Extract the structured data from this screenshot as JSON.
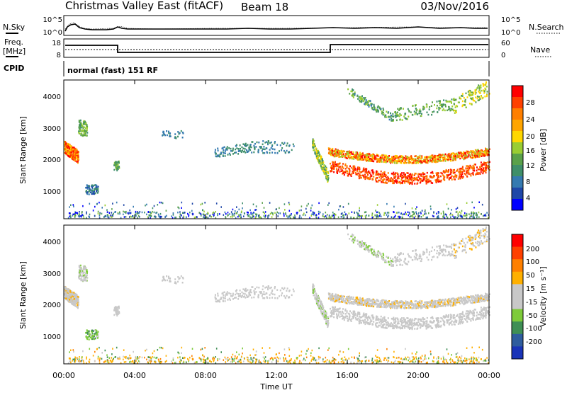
{
  "header": {
    "title": "Christmas Valley East (fitACF)",
    "beam": "Beam 18",
    "date": "03/Nov/2016"
  },
  "top_panels": {
    "nsky_label": "N.Sky",
    "nsky_ticks": [
      "10^5",
      "10^0"
    ],
    "nsearch_label": "N.Search",
    "nsearch_ticks": [
      "10^5",
      "10^0"
    ],
    "freq_label": "Freq.",
    "freq_unit": "[MHz]",
    "freq_ticks": [
      "18",
      "8"
    ],
    "nave_label": "Nave",
    "nave_ticks": [
      "60",
      "0"
    ],
    "cpid_label": "CPID",
    "cpid_text": "normal (fast) 151 RF"
  },
  "chart_data": [
    {
      "type": "heatmap",
      "name": "power",
      "ylabel": "Slant Range [km]",
      "ylim": [
        200,
        4600
      ],
      "y_ticks": [
        "4000",
        "3000",
        "2000",
        "1000"
      ],
      "colorbar_label": "Power [dB]",
      "colorbar_ticks": [
        "28",
        "24",
        "20",
        "16",
        "12",
        "8",
        "4"
      ],
      "colors": [
        "#0000ff",
        "#1f47a8",
        "#357ab0",
        "#3f8f6a",
        "#5aa14a",
        "#9acd32",
        "#ffd700",
        "#ffa500",
        "#ff7f00",
        "#ff4000",
        "#ff0000"
      ]
    },
    {
      "type": "heatmap",
      "name": "velocity",
      "ylabel": "Slant Range [km]",
      "ylim": [
        200,
        4600
      ],
      "y_ticks": [
        "4000",
        "3000",
        "2000",
        "1000"
      ],
      "colorbar_label": "Velocity [m s⁻¹]",
      "colorbar_ticks": [
        "200",
        "100",
        "50",
        "15",
        "-15",
        "-50",
        "-100",
        "-200"
      ],
      "colors": [
        "#1a34b8",
        "#2f5d9e",
        "#3f8f55",
        "#7ecb3a",
        "#c8c8c8",
        "#c8c8c8",
        "#ffb000",
        "#ff8000",
        "#ff4000",
        "#ff0000"
      ]
    }
  ],
  "x_axis": {
    "label": "Time UT",
    "ticks": [
      "00:00",
      "04:00",
      "08:00",
      "12:00",
      "16:00",
      "20:00",
      "00:00"
    ]
  }
}
